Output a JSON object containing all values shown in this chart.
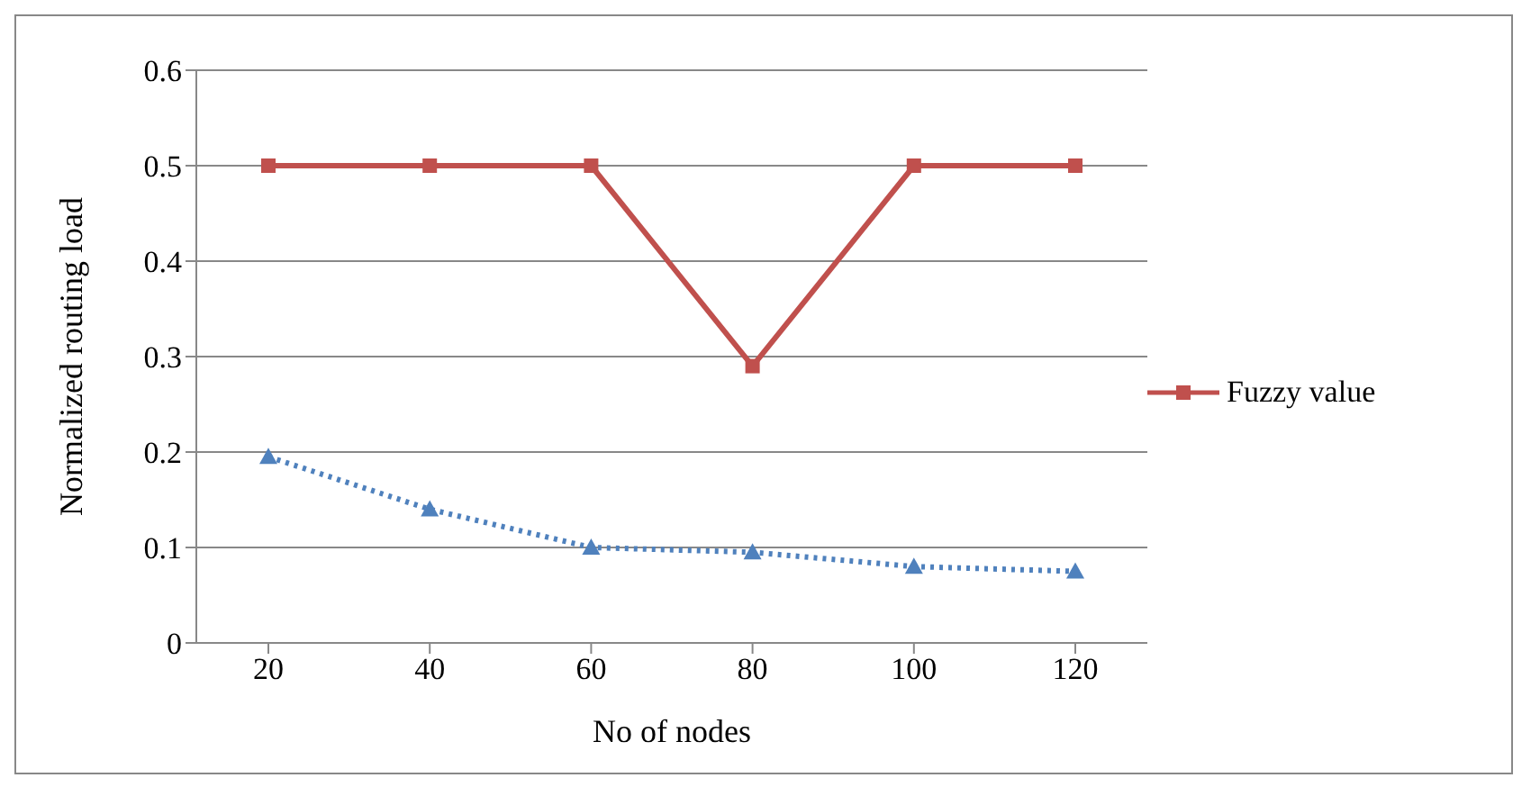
{
  "chart_data": {
    "type": "line",
    "xlabel": "No of nodes",
    "ylabel": "Normalized routing load",
    "categories": [
      "20",
      "40",
      "60",
      "80",
      "100",
      "120"
    ],
    "series": [
      {
        "name": "Fuzzy value",
        "color": "#c0504d",
        "values": [
          0.5,
          0.5,
          0.5,
          0.29,
          0.5,
          0.5
        ],
        "marker": "square",
        "line_style": "solid"
      },
      {
        "color": "#4f81bd",
        "values": [
          0.195,
          0.14,
          0.1,
          0.095,
          0.08,
          0.075
        ],
        "marker": "triangle",
        "line_style": "dotted"
      }
    ],
    "ylim": [
      0,
      0.6
    ],
    "yticks": [
      0,
      0.1,
      0.2,
      0.3,
      0.4,
      0.5,
      0.6
    ],
    "grid": "y",
    "legend": "right"
  }
}
